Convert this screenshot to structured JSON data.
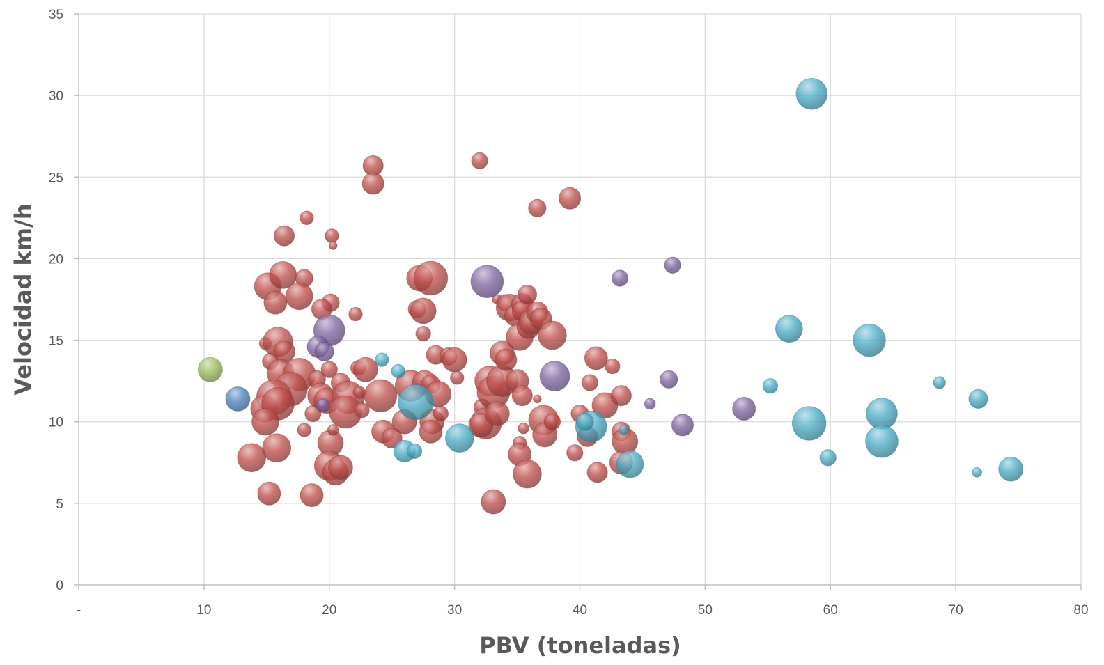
{
  "chart_data": {
    "type": "bubble",
    "title": "",
    "xlabel": "PBV (toneladas)",
    "ylabel": "Velocidad km/h",
    "xlim": [
      0,
      80
    ],
    "ylim": [
      0,
      35
    ],
    "x_ticks": [
      {
        "value": 0,
        "label": "-"
      },
      {
        "value": 10,
        "label": "10"
      },
      {
        "value": 20,
        "label": "20"
      },
      {
        "value": 30,
        "label": "30"
      },
      {
        "value": 40,
        "label": "40"
      },
      {
        "value": 50,
        "label": "50"
      },
      {
        "value": 60,
        "label": "60"
      },
      {
        "value": 70,
        "label": "70"
      },
      {
        "value": 80,
        "label": "80"
      }
    ],
    "y_ticks": [
      {
        "value": 0,
        "label": "0"
      },
      {
        "value": 5,
        "label": "5"
      },
      {
        "value": 10,
        "label": "10"
      },
      {
        "value": 15,
        "label": "15"
      },
      {
        "value": 20,
        "label": "20"
      },
      {
        "value": 25,
        "label": "25"
      },
      {
        "value": 30,
        "label": "30"
      },
      {
        "value": 35,
        "label": "35"
      }
    ],
    "grid": true,
    "legend": "none",
    "series": [
      {
        "color": "#c0504d",
        "points": [
          [
            18.2,
            22.5,
            1.0
          ],
          [
            16.4,
            21.4,
            1.5
          ],
          [
            20.2,
            21.4,
            1.0
          ],
          [
            20.3,
            20.8,
            0.6
          ],
          [
            22.1,
            16.6,
            1.0
          ],
          [
            23.5,
            25.7,
            1.5
          ],
          [
            23.5,
            24.6,
            1.6
          ],
          [
            32.0,
            26.0,
            1.2
          ],
          [
            36.6,
            23.1,
            1.3
          ],
          [
            39.2,
            23.7,
            1.6
          ],
          [
            15.1,
            18.3,
            2.0
          ],
          [
            16.3,
            19.0,
            2.0
          ],
          [
            18.0,
            18.8,
            1.3
          ],
          [
            15.7,
            17.3,
            1.7
          ],
          [
            17.6,
            17.7,
            2.0
          ],
          [
            20.1,
            17.3,
            1.3
          ],
          [
            19.4,
            16.9,
            1.5
          ],
          [
            14.9,
            14.8,
            0.9
          ],
          [
            15.9,
            14.9,
            2.2
          ],
          [
            16.4,
            14.3,
            1.6
          ],
          [
            15.3,
            13.7,
            1.2
          ],
          [
            16.1,
            13.0,
            2.0
          ],
          [
            17.6,
            12.9,
            2.4
          ],
          [
            16.9,
            12.0,
            2.5
          ],
          [
            15.6,
            11.5,
            2.6
          ],
          [
            14.8,
            10.8,
            2.0
          ],
          [
            15.9,
            11.1,
            2.4
          ],
          [
            14.9,
            10.0,
            2.0
          ],
          [
            15.8,
            8.4,
            2.1
          ],
          [
            13.8,
            7.8,
            2.1
          ],
          [
            15.2,
            5.6,
            1.7
          ],
          [
            18.6,
            5.5,
            1.7
          ],
          [
            18.0,
            9.5,
            1.0
          ],
          [
            18.7,
            10.5,
            1.2
          ],
          [
            19.0,
            12.6,
            1.3
          ],
          [
            19.3,
            11.6,
            1.9
          ],
          [
            19.8,
            11.3,
            1.9
          ],
          [
            20.0,
            13.2,
            1.2
          ],
          [
            20.9,
            12.4,
            1.4
          ],
          [
            21.5,
            11.5,
            2.4
          ],
          [
            21.3,
            10.6,
            2.4
          ],
          [
            22.3,
            13.3,
            1.1
          ],
          [
            22.4,
            11.8,
            0.9
          ],
          [
            22.6,
            10.7,
            1.1
          ],
          [
            22.9,
            13.2,
            1.8
          ],
          [
            24.1,
            11.6,
            2.4
          ],
          [
            24.3,
            9.4,
            1.7
          ],
          [
            25.0,
            9.0,
            1.5
          ],
          [
            26.0,
            10.0,
            1.8
          ],
          [
            26.5,
            12.2,
            2.3
          ],
          [
            27.0,
            16.9,
            1.3
          ],
          [
            27.5,
            16.8,
            1.9
          ],
          [
            27.2,
            18.8,
            1.9
          ],
          [
            28.1,
            18.8,
            2.5
          ],
          [
            27.5,
            15.4,
            1.1
          ],
          [
            27.6,
            12.4,
            1.8
          ],
          [
            28.1,
            12.3,
            1.4
          ],
          [
            28.7,
            11.7,
            1.9
          ],
          [
            28.2,
            10.0,
            1.8
          ],
          [
            28.1,
            9.4,
            1.7
          ],
          [
            28.5,
            14.1,
            1.4
          ],
          [
            29.5,
            14.0,
            1.3
          ],
          [
            30.0,
            13.8,
            1.8
          ],
          [
            28.9,
            10.5,
            1.1
          ],
          [
            32.2,
            10.9,
            1.2
          ],
          [
            32.5,
            9.9,
            2.3
          ],
          [
            32.1,
            9.8,
            1.8
          ],
          [
            32.8,
            12.5,
            2.2
          ],
          [
            33.1,
            11.8,
            2.4
          ],
          [
            33.8,
            12.5,
            2.3
          ],
          [
            33.4,
            10.5,
            1.8
          ],
          [
            33.8,
            14.2,
            1.8
          ],
          [
            34.1,
            13.8,
            1.6
          ],
          [
            33.4,
            17.5,
            0.7
          ],
          [
            34.0,
            17.3,
            1.2
          ],
          [
            34.4,
            17.0,
            2.0
          ],
          [
            34.8,
            16.5,
            1.5
          ],
          [
            35.4,
            17.2,
            1.6
          ],
          [
            35.4,
            16.8,
            1.5
          ],
          [
            35.8,
            17.8,
            1.4
          ],
          [
            35.2,
            15.2,
            2.0
          ],
          [
            35.9,
            15.8,
            1.7
          ],
          [
            36.1,
            16.1,
            1.8
          ],
          [
            36.6,
            16.7,
            1.6
          ],
          [
            36.9,
            16.3,
            1.6
          ],
          [
            37.8,
            15.3,
            2.1
          ],
          [
            35.0,
            12.5,
            1.7
          ],
          [
            35.4,
            11.6,
            1.5
          ],
          [
            35.5,
            9.6,
            0.8
          ],
          [
            36.6,
            11.4,
            0.6
          ],
          [
            37.1,
            10.1,
            2.2
          ],
          [
            37.2,
            9.2,
            1.8
          ],
          [
            37.8,
            10.0,
            1.2
          ],
          [
            35.2,
            8.7,
            1.0
          ],
          [
            35.2,
            8.0,
            1.7
          ],
          [
            35.8,
            6.8,
            2.1
          ],
          [
            33.1,
            5.1,
            1.8
          ],
          [
            39.6,
            8.1,
            1.2
          ],
          [
            40.0,
            10.5,
            1.3
          ],
          [
            40.6,
            9.1,
            1.5
          ],
          [
            40.8,
            12.4,
            1.2
          ],
          [
            41.3,
            13.9,
            1.7
          ],
          [
            42.0,
            11.0,
            1.9
          ],
          [
            42.6,
            13.4,
            1.1
          ],
          [
            43.3,
            11.6,
            1.5
          ],
          [
            43.3,
            9.4,
            1.4
          ],
          [
            43.6,
            8.8,
            1.9
          ],
          [
            43.3,
            7.5,
            1.7
          ],
          [
            41.4,
            6.9,
            1.5
          ],
          [
            20.1,
            8.7,
            1.9
          ],
          [
            20.0,
            7.3,
            2.2
          ],
          [
            20.5,
            6.9,
            1.9
          ],
          [
            20.9,
            7.2,
            1.8
          ],
          [
            30.2,
            12.7,
            1.0
          ],
          [
            20.3,
            9.5,
            0.8
          ]
        ]
      },
      {
        "color": "#8064a2",
        "points": [
          [
            20.0,
            15.6,
            2.3
          ],
          [
            19.1,
            14.6,
            1.6
          ],
          [
            19.6,
            14.3,
            1.4
          ],
          [
            19.5,
            11.0,
            1.0
          ],
          [
            32.6,
            18.6,
            2.4
          ],
          [
            38.0,
            12.8,
            2.2
          ],
          [
            43.2,
            18.8,
            1.2
          ],
          [
            47.4,
            19.6,
            1.2
          ],
          [
            47.1,
            12.6,
            1.3
          ],
          [
            45.6,
            11.1,
            0.8
          ],
          [
            48.2,
            9.8,
            1.6
          ],
          [
            53.1,
            10.8,
            1.7
          ]
        ]
      },
      {
        "color": "#4bacc6",
        "points": [
          [
            24.2,
            13.8,
            1.0
          ],
          [
            25.5,
            13.1,
            1.0
          ],
          [
            26.0,
            8.2,
            1.6
          ],
          [
            26.8,
            8.2,
            1.1
          ],
          [
            26.9,
            11.2,
            2.6
          ],
          [
            30.4,
            9.0,
            2.1
          ],
          [
            40.9,
            9.7,
            2.3
          ],
          [
            40.4,
            10.0,
            1.3
          ],
          [
            43.5,
            9.5,
            0.7
          ],
          [
            44.0,
            7.4,
            2.0
          ],
          [
            58.5,
            30.1,
            2.3
          ],
          [
            56.7,
            15.7,
            2.0
          ],
          [
            63.1,
            15.0,
            2.4
          ],
          [
            55.2,
            12.2,
            1.1
          ],
          [
            58.3,
            9.9,
            2.5
          ],
          [
            59.8,
            7.8,
            1.2
          ],
          [
            64.1,
            10.5,
            2.3
          ],
          [
            64.1,
            8.8,
            2.4
          ],
          [
            68.7,
            12.4,
            0.9
          ],
          [
            71.8,
            11.4,
            1.4
          ],
          [
            71.7,
            6.9,
            0.7
          ],
          [
            74.4,
            7.1,
            1.8
          ]
        ]
      },
      {
        "color": "#4f81bd",
        "points": [
          [
            12.7,
            11.4,
            1.8
          ]
        ]
      },
      {
        "color": "#9bbb59",
        "points": [
          [
            10.5,
            13.2,
            1.8
          ]
        ]
      }
    ]
  }
}
